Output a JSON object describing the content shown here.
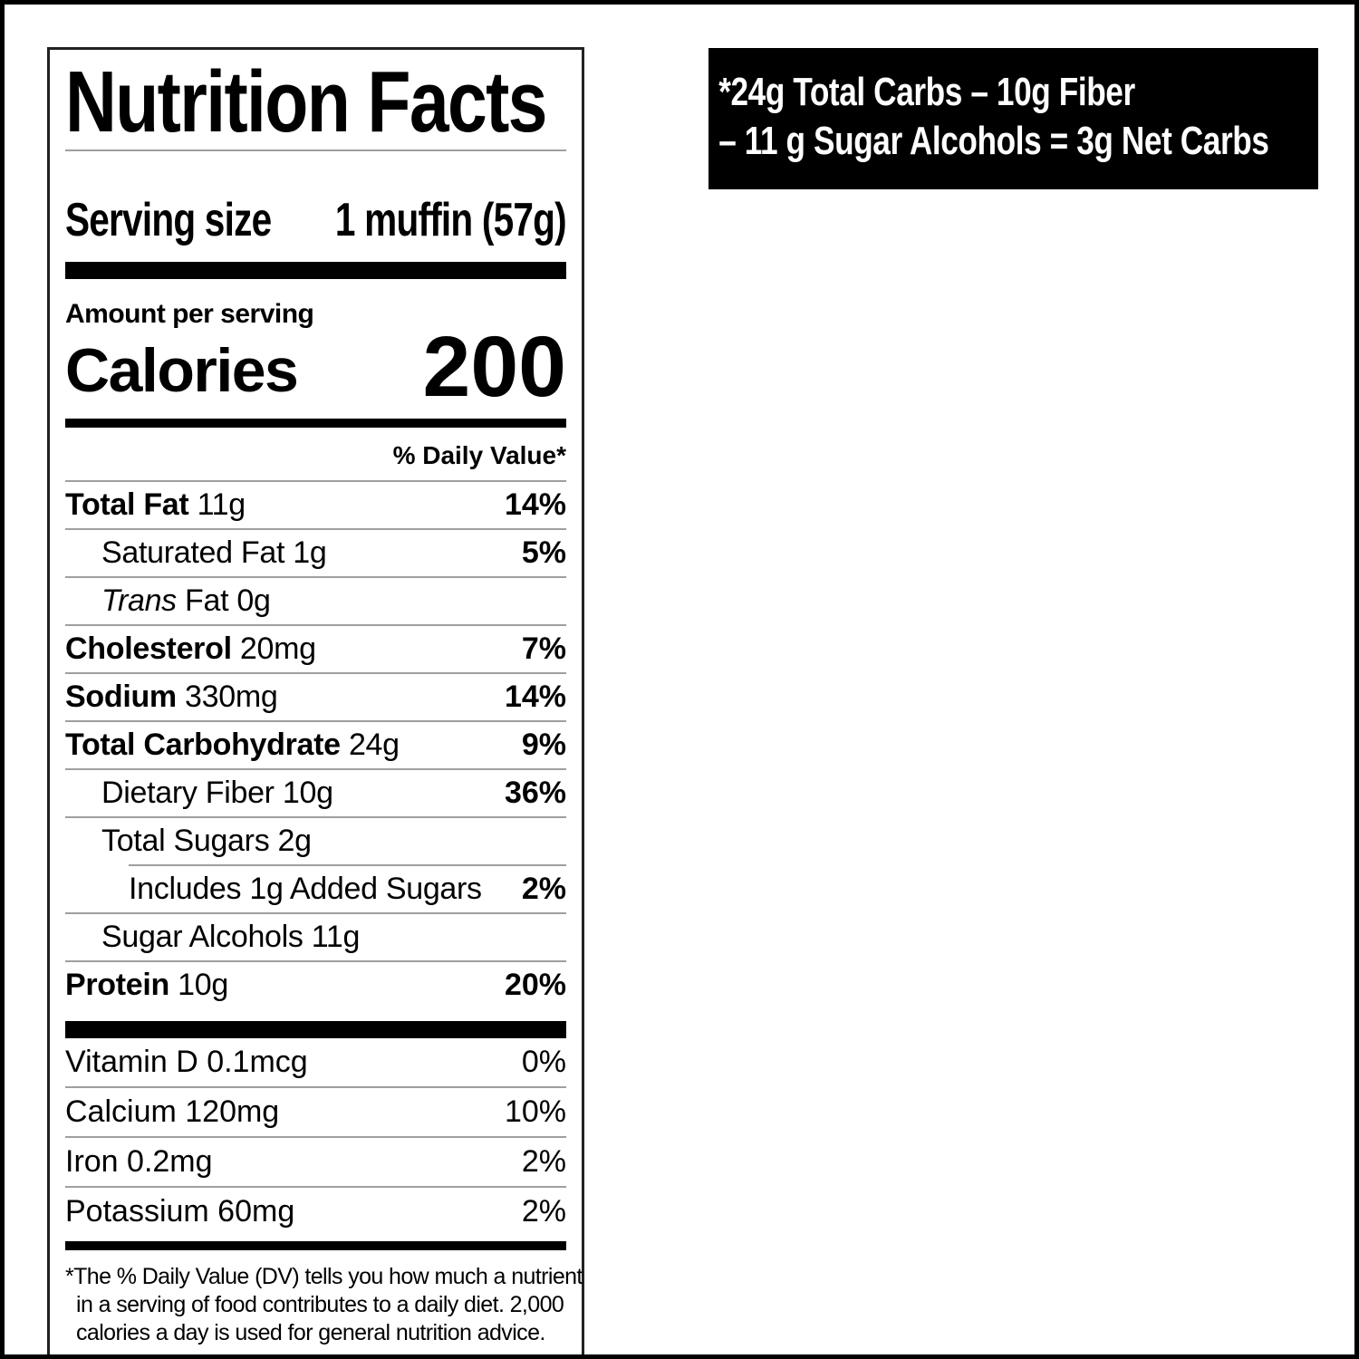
{
  "page": {
    "background": "#ffffff",
    "frame_color": "#000000"
  },
  "label": {
    "title": "Nutrition Facts",
    "serving": {
      "label": "Serving size",
      "value": "1 muffin (57g)"
    },
    "amount_per_serving": "Amount per serving",
    "calories": {
      "label": "Calories",
      "value": "200"
    },
    "daily_value_header": "% Daily Value*",
    "rows": [
      {
        "bold": "Total Fat",
        "text": " 11g",
        "percent": "14%"
      },
      {
        "bold": "",
        "text": "Saturated Fat 1g",
        "percent": "5%"
      },
      {
        "bold": "",
        "italic": "Trans",
        "text": " Fat 0g",
        "percent": ""
      },
      {
        "bold": "Cholesterol",
        "text": " 20mg",
        "percent": "7%"
      },
      {
        "bold": "Sodium",
        "text": " 330mg",
        "percent": "14%"
      },
      {
        "bold": "Total Carbohydrate",
        "text": " 24g",
        "percent": "9%"
      },
      {
        "bold": "",
        "text": "Dietary Fiber 10g",
        "percent": "36%"
      },
      {
        "bold": "",
        "text": "Total Sugars 2g",
        "percent": ""
      },
      {
        "bold": "",
        "text": "Includes 1g Added Sugars",
        "percent": "2%"
      },
      {
        "bold": "",
        "text": "Sugar Alcohols 11g",
        "percent": ""
      },
      {
        "bold": "Protein",
        "text": " 10g",
        "percent": "20%"
      }
    ],
    "vitamins": [
      {
        "name": "Vitamin D 0.1mcg",
        "percent": "0%"
      },
      {
        "name": "Calcium 120mg",
        "percent": "10%"
      },
      {
        "name": "Iron 0.2mg",
        "percent": "2%"
      },
      {
        "name": "Potassium 60mg",
        "percent": "2%"
      }
    ],
    "footnote_lines": [
      "*The % Daily Value (DV) tells you how much a nutrient",
      "in a serving of food contributes to a daily diet. 2,000",
      "calories a day is used for general nutrition advice."
    ],
    "divider_color": "#9f9f9f"
  },
  "callout": {
    "line1": "*24g Total Carbs – 10g Fiber",
    "line2": "– 11 g Sugar Alcohols = 3g Net Carbs",
    "background": "#000000",
    "text_color": "#ffffff"
  }
}
